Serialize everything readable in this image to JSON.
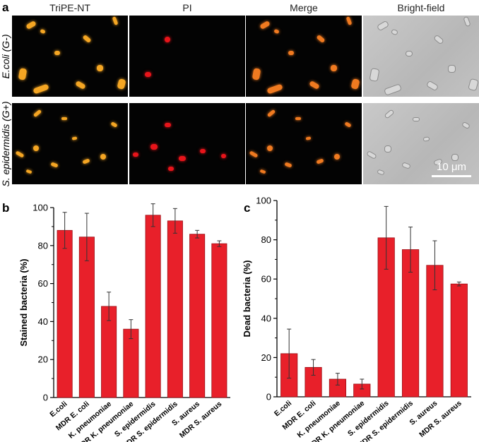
{
  "panel_a": {
    "letter": "a",
    "columns": [
      "TriPE-NT",
      "PI",
      "Merge",
      "Bright-field"
    ],
    "rows": [
      "E.coli (G-)",
      "S. epidermidis (G+)"
    ],
    "scale_bar": "10 μm"
  },
  "colors": {
    "bar_fill": "#e8202a",
    "bar_stroke": "#9a1016",
    "tripe_cell": "#f5a623",
    "pi_cell": "#e8141a",
    "merge_cell": "#f07a20",
    "brightfield_bg": "#c4c4c4"
  },
  "chart_data": [
    {
      "type": "bar",
      "letter": "b",
      "categories": [
        "E.coli",
        "MDR E. coli",
        "K. pneumoniae",
        "MDR K. pneumoniae",
        "S. epidermidis",
        "MDR S. epidermidis",
        "S. aureus",
        "MDR S. aureus"
      ],
      "values": [
        88,
        84.5,
        48,
        36,
        96,
        93,
        86,
        81
      ],
      "errors": [
        9.5,
        12.5,
        7.5,
        5,
        6,
        6.5,
        2,
        1.5
      ],
      "ylabel": "Stained bacteria (%)",
      "ylim": [
        0,
        100
      ],
      "yticks": [
        0,
        20,
        40,
        60,
        80,
        100
      ]
    },
    {
      "type": "bar",
      "letter": "c",
      "categories": [
        "E.coli",
        "MDR E. coli",
        "K. pneumoniae",
        "MDR K. pneumoniae",
        "S. epidermidis",
        "MDR S. epidermidis",
        "S. aureus",
        "MDR S. aureus"
      ],
      "values": [
        22,
        15,
        9,
        6.5,
        81,
        75,
        67,
        57.5
      ],
      "errors": [
        12.5,
        4,
        3,
        2.5,
        16,
        11.5,
        12.5,
        1
      ],
      "ylabel": "Dead bacteria (%)",
      "ylim": [
        0,
        100
      ],
      "yticks": [
        0,
        20,
        40,
        60,
        80,
        100
      ]
    }
  ]
}
